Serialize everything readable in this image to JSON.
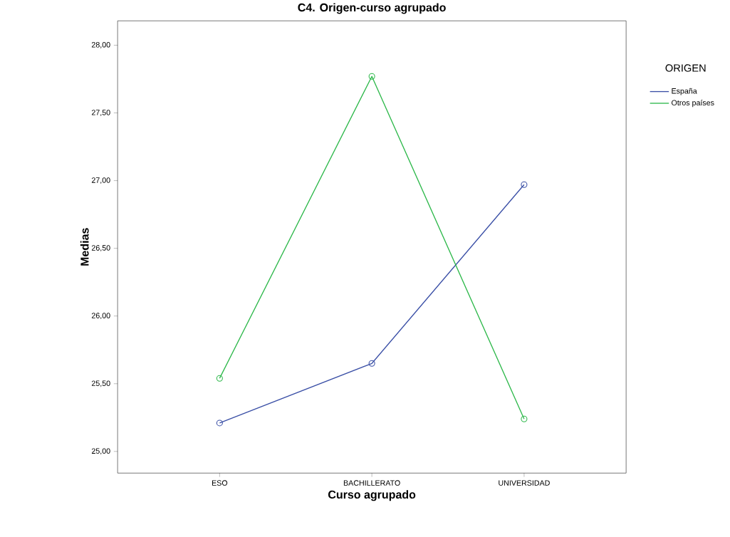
{
  "chart_data": {
    "type": "line",
    "title": "C4. Origen-curso agrupado",
    "xlabel": "Curso agrupado",
    "ylabel": "Medias",
    "legend_title": "ORIGEN",
    "categories": [
      "ESO",
      "BACHILLERATO",
      "UNIVERSIDAD"
    ],
    "series": [
      {
        "name": "España",
        "color": "#3a4fa6",
        "values": [
          25.21,
          25.65,
          26.97
        ]
      },
      {
        "name": "Otros países",
        "color": "#2db84a",
        "values": [
          25.54,
          27.77,
          25.24
        ]
      }
    ],
    "ylim": [
      24.84,
      28.18
    ],
    "yticks": [
      {
        "value": 25,
        "label": "25,00"
      },
      {
        "value": 25.5,
        "label": "25,50"
      },
      {
        "value": 26,
        "label": "26,00"
      },
      {
        "value": 26.5,
        "label": "26,50"
      },
      {
        "value": 27,
        "label": "27,00"
      },
      {
        "value": 27.5,
        "label": "27,50"
      },
      {
        "value": 28,
        "label": "28,00"
      }
    ],
    "grid": false,
    "legend": "right",
    "marker": "circle",
    "line_style": "solid"
  }
}
